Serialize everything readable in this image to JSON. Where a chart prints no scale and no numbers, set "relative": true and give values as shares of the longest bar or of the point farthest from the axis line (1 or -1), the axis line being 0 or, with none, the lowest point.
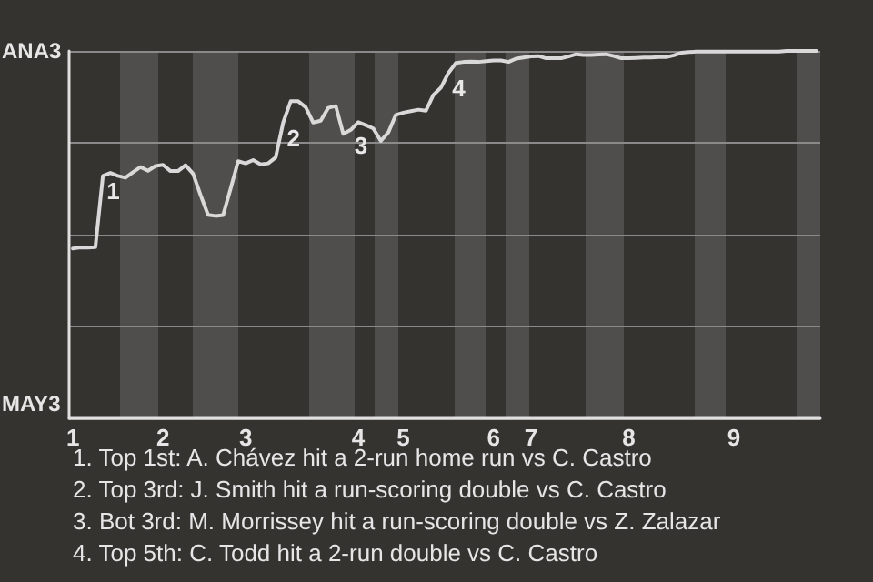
{
  "chart_data": {
    "type": "line",
    "relative": true,
    "categories": [
      "1",
      null,
      null,
      null,
      null,
      null,
      null,
      null,
      null,
      null,
      null,
      null,
      "2",
      null,
      null,
      null,
      null,
      null,
      null,
      null,
      null,
      null,
      null,
      "3",
      null,
      null,
      null,
      null,
      null,
      null,
      null,
      null,
      null,
      null,
      null,
      null,
      null,
      null,
      "4",
      null,
      null,
      null,
      null,
      null,
      "5",
      null,
      null,
      null,
      null,
      null,
      null,
      null,
      null,
      null,
      null,
      null,
      "6",
      null,
      null,
      null,
      null,
      "7",
      null,
      null,
      null,
      null,
      null,
      null,
      null,
      null,
      null,
      null,
      null,
      null,
      "8",
      null,
      null,
      null,
      null,
      null,
      null,
      null,
      null,
      null,
      null,
      null,
      null,
      null,
      "9",
      null,
      null,
      null,
      null,
      null,
      null,
      null,
      null,
      null,
      null,
      null
    ],
    "series": [
      {
        "color": "#d9d9d9",
        "values": [
          0.462,
          0.465,
          0.465,
          0.466,
          0.66,
          0.668,
          0.66,
          0.655,
          0.67,
          0.684,
          0.674,
          0.687,
          0.69,
          0.673,
          0.673,
          0.689,
          0.666,
          0.608,
          0.554,
          0.551,
          0.553,
          0.625,
          0.7,
          0.694,
          0.703,
          0.691,
          0.694,
          0.71,
          0.805,
          0.863,
          0.863,
          0.847,
          0.805,
          0.81,
          0.845,
          0.85,
          0.774,
          0.785,
          0.806,
          0.798,
          0.789,
          0.755,
          0.778,
          0.826,
          0.832,
          0.836,
          0.84,
          0.837,
          0.88,
          0.9,
          0.94,
          0.967,
          0.97,
          0.971,
          0.97,
          0.972,
          0.974,
          0.974,
          0.97,
          0.979,
          0.982,
          0.985,
          0.986,
          0.98,
          0.98,
          0.98,
          0.985,
          0.991,
          0.989,
          0.989,
          0.99,
          0.991,
          0.986,
          0.98,
          0.98,
          0.981,
          0.982,
          0.982,
          0.983,
          0.983,
          0.988,
          0.995,
          0.997,
          0.998,
          0.998,
          0.998,
          0.998,
          0.998,
          0.998,
          0.998,
          0.998,
          0.998,
          0.998,
          0.998,
          0.998,
          1,
          1,
          1,
          1,
          1
        ]
      }
    ],
    "grid": "y",
    "annotations": [
      "ANA3",
      "MAY3",
      {
        "text": "1",
        "y": 0.66
      },
      {
        "text": "2",
        "y": 0.805
      },
      {
        "text": "3",
        "y": 0.785
      },
      {
        "text": "4",
        "y": 0.94
      },
      "1. Top 1st: A. Chávez hit a 2-run home run vs C. Castro",
      "2. Top 3rd: J. Smith hit a run-scoring double vs C. Castro",
      "3. Bot 3rd: M. Morrissey hit a run-scoring double vs Z. Zalazar",
      "4. Top 5th: C. Todd hit a 2-run double vs C. Castro"
    ],
    "marker": "none",
    "line_style": "solid"
  }
}
